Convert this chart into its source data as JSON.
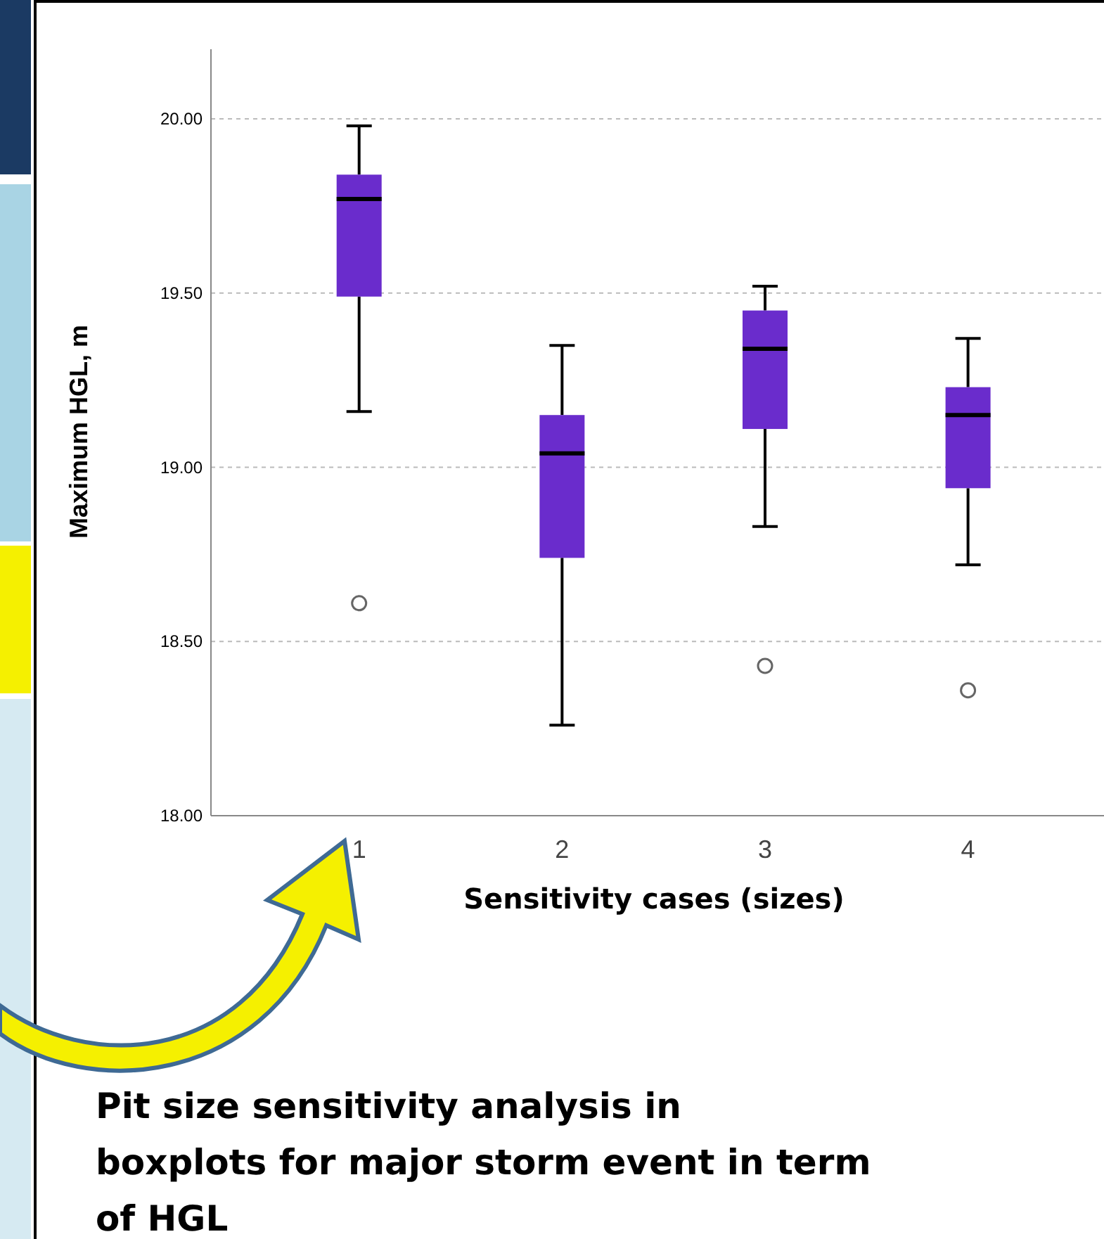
{
  "chart_data": {
    "type": "box",
    "xlabel": "Sensitivity cases (sizes)",
    "ylabel": "Maximum HGL, m",
    "categories": [
      "1",
      "2",
      "3",
      "4"
    ],
    "color": "#6a2ccc",
    "ylim": [
      18,
      20.2
    ],
    "yticks": [
      {
        "value": 18,
        "label": "18.00"
      },
      {
        "value": 18.5,
        "label": "18.50"
      },
      {
        "value": 19,
        "label": "19.00"
      },
      {
        "value": 19.5,
        "label": "19.50"
      },
      {
        "value": 20,
        "label": "20.00"
      }
    ],
    "grid": "y",
    "boxes": [
      {
        "low": 19.16,
        "q1": 19.49,
        "median": 19.77,
        "q3": 19.84,
        "high": 19.98,
        "outliers": [
          18.61
        ]
      },
      {
        "low": 18.26,
        "q1": 18.74,
        "median": 19.04,
        "q3": 19.15,
        "high": 19.35
      },
      {
        "low": 18.83,
        "q1": 19.11,
        "median": 19.34,
        "q3": 19.45,
        "high": 19.52,
        "outliers": [
          18.43
        ]
      },
      {
        "low": 18.72,
        "q1": 18.94,
        "median": 19.15,
        "q3": 19.23,
        "high": 19.37,
        "outliers": [
          18.36
        ]
      }
    ],
    "annotations": [
      "Pit size sensitivity analysis in boxplots for major storm event in term of HGL"
    ]
  }
}
